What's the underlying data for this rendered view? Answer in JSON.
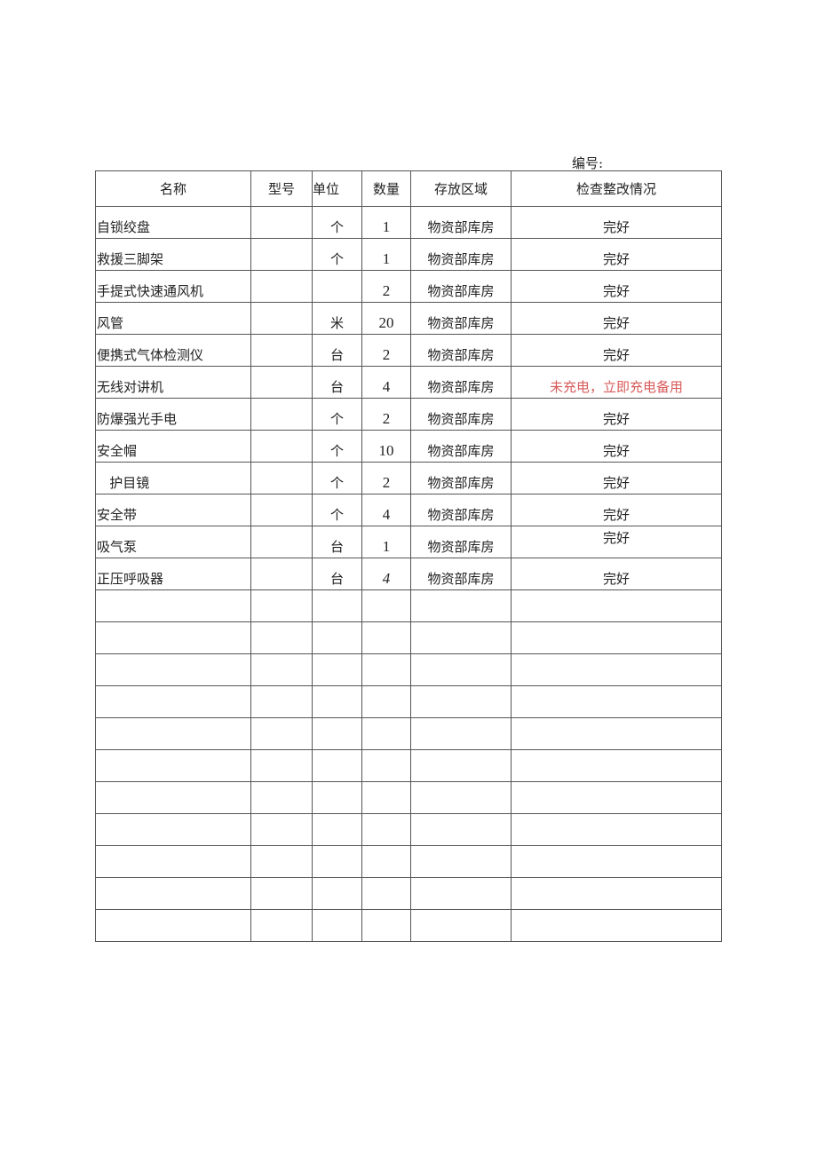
{
  "number_label": "编号:",
  "headers": [
    "名称",
    "型号",
    "单位",
    "数量",
    "存放区域",
    "检查整改情况"
  ],
  "rows": [
    {
      "name": "自锁绞盘",
      "model": "",
      "unit": "个",
      "qty": "1",
      "area": "物资部库房",
      "status": "完好"
    },
    {
      "name": "救援三脚架",
      "model": "",
      "unit": "个",
      "qty": "1",
      "area": "物资部库房",
      "status": "完好"
    },
    {
      "name": "手提式快速通风机",
      "model": "",
      "unit": "",
      "qty": "2",
      "area": "物资部库房",
      "status": "完好"
    },
    {
      "name": "风管",
      "model": "",
      "unit": "米",
      "qty": "20",
      "area": "物资部库房",
      "status": "完好"
    },
    {
      "name": "便携式气体检测仪",
      "model": "",
      "unit": "台",
      "qty": "2",
      "area": "物资部库房",
      "status": "完好"
    },
    {
      "name": "无线对讲机",
      "model": "",
      "unit": "台",
      "qty": "4",
      "area": "物资部库房",
      "status": "未充电，立即充电备用"
    },
    {
      "name": "防爆强光手电",
      "model": "",
      "unit": "个",
      "qty": "2",
      "area": "物资部库房",
      "status": "完好"
    },
    {
      "name": "安全帽",
      "model": "",
      "unit": "个",
      "qty": "10",
      "area": "物资部库房",
      "status": "完好"
    },
    {
      "name": "   护目镜",
      "model": "",
      "unit": "个",
      "qty": "2",
      "area": "物资部库房",
      "status": "完好"
    },
    {
      "name": "安全带",
      "model": "",
      "unit": "个",
      "qty": "4",
      "area": "物资部库房",
      "status": "完好"
    },
    {
      "name": "吸气泵",
      "model": "",
      "unit": "台",
      "qty": "1",
      "area": "物资部库房",
      "status": "完好"
    },
    {
      "name": "正压呼吸器",
      "model": "",
      "unit": "台",
      "qty": "4",
      "area": "物资部库房",
      "status": "完好"
    }
  ],
  "empty_row_count": 11,
  "colors": {
    "alert_text": "#d85a5a",
    "border": "#555555"
  }
}
